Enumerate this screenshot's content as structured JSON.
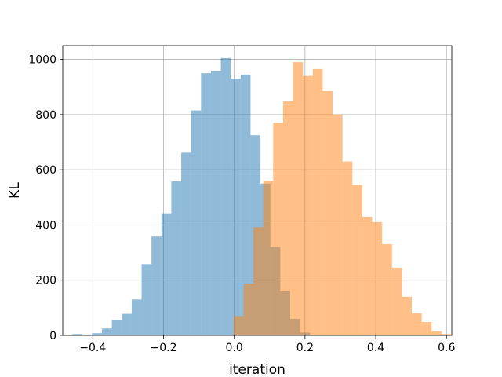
{
  "chart_data": {
    "type": "histogram",
    "title": "",
    "xlabel": "iteration",
    "ylabel": "KL",
    "xlim": [
      -0.485,
      0.615
    ],
    "ylim": [
      0,
      1050
    ],
    "xticks": [
      -0.4,
      -0.2,
      0.0,
      0.2,
      0.4,
      0.6
    ],
    "xtick_labels": [
      "−0.4",
      "−0.2",
      "0.0",
      "0.2",
      "0.4",
      "0.6"
    ],
    "yticks": [
      0,
      200,
      400,
      600,
      800,
      1000
    ],
    "ytick_labels": [
      "0",
      "200",
      "400",
      "600",
      "800",
      "1000"
    ],
    "grid": true,
    "legend": "none",
    "series": [
      {
        "color": "#1f77b4",
        "alpha": 0.5,
        "bins": [
          {
            "x0": -0.458,
            "x1": -0.43,
            "count": 5
          },
          {
            "x0": -0.43,
            "x1": -0.402,
            "count": 3
          },
          {
            "x0": -0.402,
            "x1": -0.374,
            "count": 8
          },
          {
            "x0": -0.374,
            "x1": -0.346,
            "count": 25
          },
          {
            "x0": -0.346,
            "x1": -0.318,
            "count": 55
          },
          {
            "x0": -0.318,
            "x1": -0.29,
            "count": 78
          },
          {
            "x0": -0.29,
            "x1": -0.262,
            "count": 130
          },
          {
            "x0": -0.262,
            "x1": -0.234,
            "count": 258
          },
          {
            "x0": -0.234,
            "x1": -0.206,
            "count": 358
          },
          {
            "x0": -0.206,
            "x1": -0.178,
            "count": 442
          },
          {
            "x0": -0.178,
            "x1": -0.15,
            "count": 558
          },
          {
            "x0": -0.15,
            "x1": -0.122,
            "count": 662
          },
          {
            "x0": -0.122,
            "x1": -0.094,
            "count": 815
          },
          {
            "x0": -0.094,
            "x1": -0.066,
            "count": 950
          },
          {
            "x0": -0.066,
            "x1": -0.038,
            "count": 957
          },
          {
            "x0": -0.038,
            "x1": -0.01,
            "count": 1005
          },
          {
            "x0": -0.01,
            "x1": 0.018,
            "count": 930
          },
          {
            "x0": 0.018,
            "x1": 0.046,
            "count": 945
          },
          {
            "x0": 0.046,
            "x1": 0.074,
            "count": 725
          },
          {
            "x0": 0.074,
            "x1": 0.102,
            "count": 550
          },
          {
            "x0": 0.102,
            "x1": 0.13,
            "count": 320
          },
          {
            "x0": 0.13,
            "x1": 0.158,
            "count": 160
          },
          {
            "x0": 0.158,
            "x1": 0.186,
            "count": 60
          },
          {
            "x0": 0.186,
            "x1": 0.214,
            "count": 10
          }
        ]
      },
      {
        "color": "#ff7f0e",
        "alpha": 0.5,
        "bins": [
          {
            "x0": -0.002,
            "x1": 0.026,
            "count": 70
          },
          {
            "x0": 0.026,
            "x1": 0.054,
            "count": 188
          },
          {
            "x0": 0.054,
            "x1": 0.082,
            "count": 392
          },
          {
            "x0": 0.082,
            "x1": 0.11,
            "count": 560
          },
          {
            "x0": 0.11,
            "x1": 0.138,
            "count": 770
          },
          {
            "x0": 0.138,
            "x1": 0.166,
            "count": 848
          },
          {
            "x0": 0.166,
            "x1": 0.194,
            "count": 990
          },
          {
            "x0": 0.194,
            "x1": 0.222,
            "count": 940
          },
          {
            "x0": 0.222,
            "x1": 0.25,
            "count": 965
          },
          {
            "x0": 0.25,
            "x1": 0.278,
            "count": 885
          },
          {
            "x0": 0.278,
            "x1": 0.306,
            "count": 800
          },
          {
            "x0": 0.306,
            "x1": 0.334,
            "count": 630
          },
          {
            "x0": 0.334,
            "x1": 0.362,
            "count": 545
          },
          {
            "x0": 0.362,
            "x1": 0.39,
            "count": 430
          },
          {
            "x0": 0.39,
            "x1": 0.418,
            "count": 410
          },
          {
            "x0": 0.418,
            "x1": 0.446,
            "count": 330
          },
          {
            "x0": 0.446,
            "x1": 0.474,
            "count": 245
          },
          {
            "x0": 0.474,
            "x1": 0.502,
            "count": 140
          },
          {
            "x0": 0.502,
            "x1": 0.53,
            "count": 80
          },
          {
            "x0": 0.53,
            "x1": 0.558,
            "count": 48
          },
          {
            "x0": 0.558,
            "x1": 0.586,
            "count": 15
          },
          {
            "x0": 0.586,
            "x1": 0.614,
            "count": 5
          }
        ]
      }
    ]
  }
}
